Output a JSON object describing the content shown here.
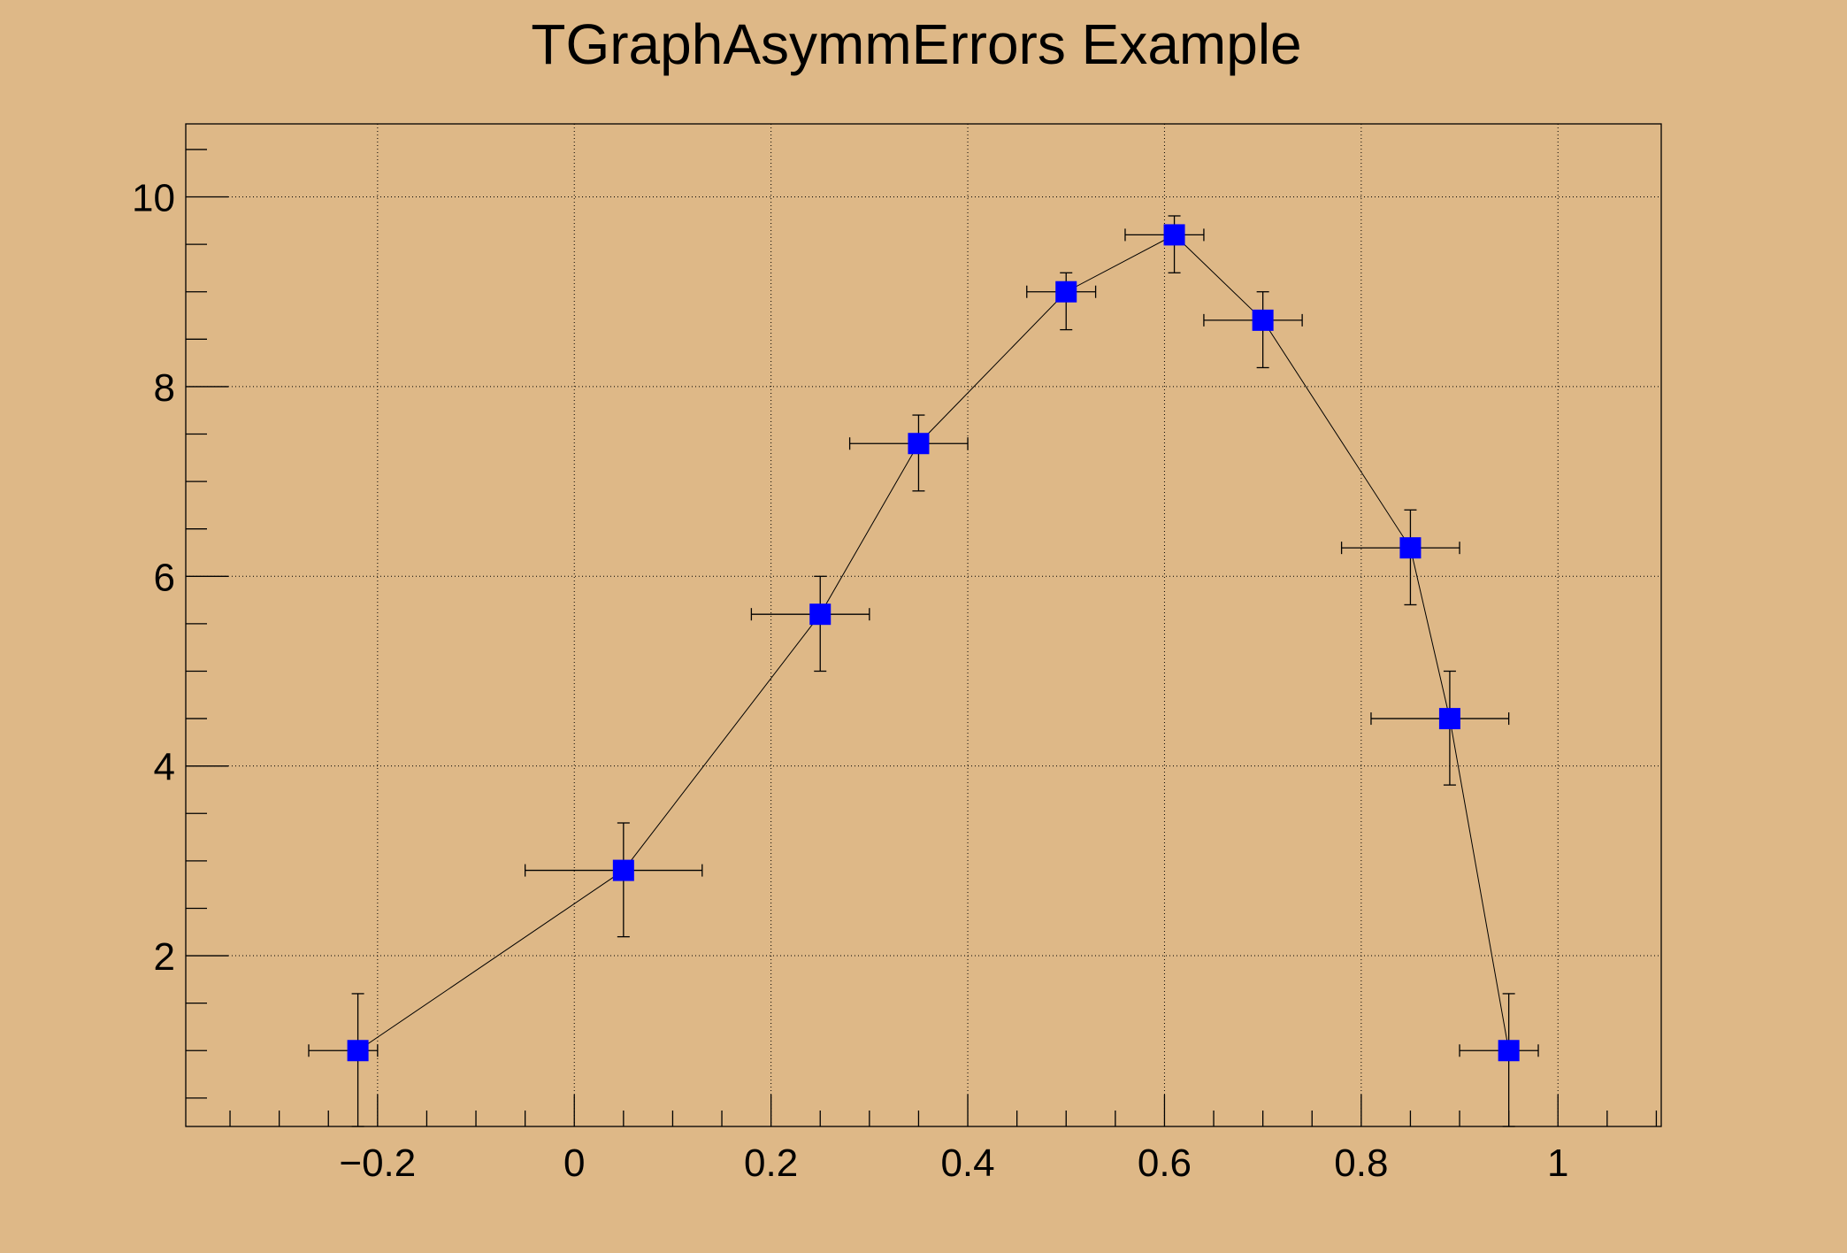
{
  "chart_data": {
    "type": "scatter",
    "title": "TGraphAsymmErrors Example",
    "xlabel": "",
    "ylabel": "",
    "xlim": [
      -0.395,
      1.105
    ],
    "ylim": [
      0.2,
      10.77
    ],
    "grid": true,
    "x_ticks": [
      -0.2,
      0,
      0.2,
      0.4,
      0.6,
      0.8,
      1
    ],
    "x_tick_labels": [
      "−0.2",
      "0",
      "0.2",
      "0.4",
      "0.6",
      "0.8",
      "1"
    ],
    "y_ticks": [
      2,
      4,
      6,
      8,
      10
    ],
    "y_tick_labels": [
      "2",
      "4",
      "6",
      "8",
      "10"
    ],
    "series": [
      {
        "x": [
          -0.22,
          0.05,
          0.25,
          0.35,
          0.5,
          0.61,
          0.7,
          0.85,
          0.89,
          0.95
        ],
        "y": [
          1,
          2.9,
          5.6,
          7.4,
          9,
          9.6,
          8.7,
          6.3,
          4.5,
          1
        ],
        "exl": [
          0.05,
          0.1,
          0.07,
          0.07,
          0.04,
          0.05,
          0.06,
          0.07,
          0.08,
          0.05
        ],
        "exh": [
          0.02,
          0.08,
          0.05,
          0.05,
          0.03,
          0.03,
          0.04,
          0.05,
          0.06,
          0.03
        ],
        "eyl": [
          0.8,
          0.7,
          0.6,
          0.5,
          0.4,
          0.4,
          0.5,
          0.6,
          0.7,
          0.8
        ],
        "eyh": [
          0.6,
          0.5,
          0.4,
          0.3,
          0.2,
          0.2,
          0.3,
          0.4,
          0.5,
          0.6
        ],
        "marker": "square",
        "marker_color": "#0000ff",
        "line_color": "#000000"
      }
    ]
  },
  "colors": {
    "background": "#deb887",
    "marker": "#0000ff",
    "axis": "#000000"
  }
}
